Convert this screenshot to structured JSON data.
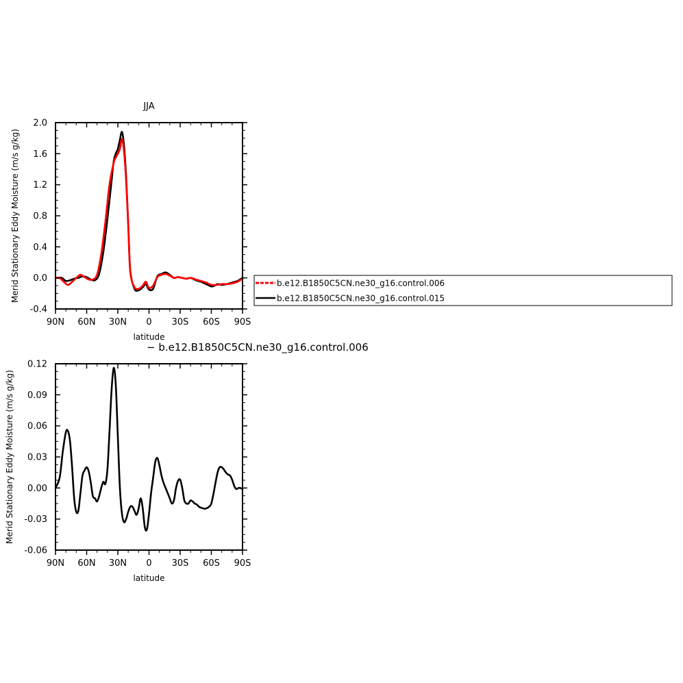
{
  "chart_data": [
    {
      "type": "line",
      "title": "JJA",
      "xlabel": "latitude",
      "ylabel": "Merid Stationary Eddy Moisture (m/s g/kg)",
      "x_ticks": [
        "90N",
        "60N",
        "30N",
        "0",
        "30S",
        "60S",
        "90S"
      ],
      "x_tick_values": [
        90,
        60,
        30,
        0,
        -30,
        -60,
        -90
      ],
      "xlim": [
        90,
        -90
      ],
      "y_ticks": [
        "-0.4",
        "0.0",
        "0.4",
        "0.8",
        "1.2",
        "1.6",
        "2.0"
      ],
      "ylim": [
        -0.4,
        2.0
      ],
      "grid": false,
      "legend_position": "right",
      "series": [
        {
          "name": "b.e12.B1850C5CN.ne30_g16.control.015",
          "color": "#000000",
          "style": "solid",
          "x": [
            90,
            84,
            80,
            76,
            72,
            68,
            64,
            60,
            56,
            52,
            48,
            44,
            40,
            36,
            34,
            32,
            30,
            28,
            26,
            24,
            22,
            20,
            18,
            14,
            10,
            6,
            3,
            0,
            -4,
            -8,
            -12,
            -16,
            -20,
            -24,
            -28,
            -32,
            -36,
            -40,
            -45,
            -50,
            -55,
            -60,
            -63,
            -66,
            -70,
            -75,
            -80,
            -85,
            -90
          ],
          "y": [
            0.0,
            0.0,
            -0.04,
            -0.03,
            -0.01,
            0.0,
            0.02,
            0.01,
            -0.02,
            -0.03,
            0.05,
            0.33,
            0.76,
            1.25,
            1.5,
            1.6,
            1.66,
            1.78,
            1.88,
            1.7,
            1.3,
            0.7,
            0.1,
            -0.14,
            -0.16,
            -0.12,
            -0.08,
            -0.15,
            -0.14,
            0.02,
            0.05,
            0.07,
            0.04,
            0.0,
            0.01,
            0.0,
            -0.01,
            0.0,
            -0.03,
            -0.05,
            -0.08,
            -0.11,
            -0.1,
            -0.08,
            -0.09,
            -0.08,
            -0.06,
            -0.04,
            0.0
          ]
        },
        {
          "name": "b.e12.B1850C5CN.ne30_g16.control.006",
          "color": "#ff0000",
          "style": "dashed",
          "x": [
            90,
            86,
            82,
            78,
            74,
            70,
            66,
            62,
            58,
            54,
            50,
            46,
            42,
            38,
            34,
            32,
            30,
            28,
            26,
            24,
            22,
            20,
            18,
            14,
            10,
            6,
            3,
            0,
            -4,
            -8,
            -12,
            -16,
            -20,
            -24,
            -28,
            -32,
            -36,
            -40,
            -45,
            -50,
            -55,
            -60,
            -65,
            -70,
            -75,
            -80,
            -85,
            -90
          ],
          "y": [
            0.0,
            0.0,
            -0.05,
            -0.09,
            -0.05,
            0.0,
            0.04,
            0.01,
            -0.02,
            -0.02,
            0.04,
            0.3,
            0.72,
            1.2,
            1.48,
            1.55,
            1.6,
            1.66,
            1.79,
            1.62,
            1.25,
            0.68,
            0.08,
            -0.12,
            -0.14,
            -0.1,
            -0.05,
            -0.13,
            -0.1,
            0.01,
            0.04,
            0.05,
            0.03,
            0.0,
            0.01,
            0.0,
            -0.01,
            0.0,
            -0.02,
            -0.04,
            -0.06,
            -0.09,
            -0.09,
            -0.08,
            -0.08,
            -0.07,
            -0.05,
            -0.01
          ]
        }
      ]
    },
    {
      "type": "line",
      "title": "",
      "xlabel": "latitude",
      "ylabel": "Merid Stationary Eddy Moisture (m/s g/kg)",
      "x_ticks": [
        "90N",
        "60N",
        "30N",
        "0",
        "30S",
        "60S",
        "90S"
      ],
      "x_tick_values": [
        90,
        60,
        30,
        0,
        -30,
        -60,
        -90
      ],
      "xlim": [
        90,
        -90
      ],
      "y_ticks": [
        "-0.06",
        "-0.03",
        "0.00",
        "0.03",
        "0.06",
        "0.09",
        "0.12"
      ],
      "ylim": [
        -0.06,
        0.12
      ],
      "grid": false,
      "series": [
        {
          "name": "b.e12.B1850C5CN.ne30_g16.control.006",
          "color": "#000000",
          "style": "solid",
          "x": [
            90,
            86,
            83,
            80,
            78,
            76,
            74,
            72,
            70,
            68,
            66,
            64,
            62,
            60,
            58,
            56,
            54,
            52,
            50,
            48,
            46,
            44,
            42,
            40,
            38,
            36,
            34,
            32,
            30,
            28,
            26,
            24,
            22,
            20,
            18,
            16,
            14,
            12,
            10,
            8,
            6,
            4,
            2,
            0,
            -2,
            -4,
            -6,
            -8,
            -10,
            -12,
            -14,
            -16,
            -18,
            -20,
            -22,
            -24,
            -26,
            -28,
            -30,
            -32,
            -34,
            -36,
            -38,
            -40,
            -42,
            -44,
            -46,
            -48,
            -50,
            -54,
            -58,
            -60,
            -62,
            -64,
            -66,
            -68,
            -70,
            -72,
            -74,
            -76,
            -78,
            -80,
            -82,
            -84,
            -86,
            -88,
            -90
          ],
          "y": [
            0.0,
            0.01,
            0.035,
            0.054,
            0.055,
            0.045,
            0.02,
            -0.01,
            -0.023,
            -0.022,
            -0.005,
            0.012,
            0.017,
            0.02,
            0.016,
            0.005,
            -0.008,
            -0.01,
            -0.013,
            -0.008,
            0.0,
            0.006,
            0.004,
            0.018,
            0.055,
            0.095,
            0.116,
            0.1,
            0.05,
            0.0,
            -0.025,
            -0.033,
            -0.03,
            -0.023,
            -0.018,
            -0.018,
            -0.022,
            -0.026,
            -0.02,
            -0.01,
            -0.02,
            -0.038,
            -0.04,
            -0.025,
            -0.005,
            0.01,
            0.025,
            0.029,
            0.022,
            0.012,
            0.005,
            0.0,
            -0.005,
            -0.01,
            -0.015,
            -0.012,
            0.0,
            0.007,
            0.008,
            0.0,
            -0.012,
            -0.015,
            -0.015,
            -0.012,
            -0.013,
            -0.015,
            -0.016,
            -0.018,
            -0.019,
            -0.02,
            -0.018,
            -0.015,
            -0.006,
            0.005,
            0.015,
            0.02,
            0.02,
            0.018,
            0.015,
            0.013,
            0.012,
            0.008,
            0.002,
            -0.001,
            0.0,
            0.0,
            -0.001
          ]
        }
      ]
    }
  ],
  "legend": {
    "items": [
      {
        "label": "b.e12.B1850C5CN.ne30_g16.control.006",
        "color": "#ff0000",
        "style": "dashed"
      },
      {
        "label": "b.e12.B1850C5CN.ne30_g16.control.015",
        "color": "#000000",
        "style": "solid"
      }
    ]
  },
  "note": "− b.e12.B1850C5CN.ne30_g16.control.006"
}
